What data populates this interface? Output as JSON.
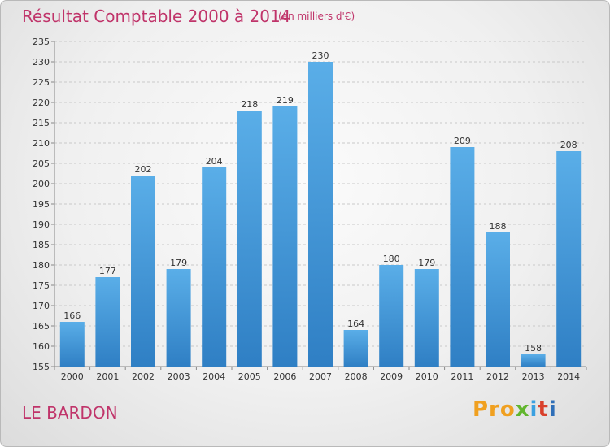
{
  "header": {
    "title": "Résultat Comptable 2000 à 2014",
    "subtitle": "(en milliers d'€)"
  },
  "footer": {
    "place": "LE BARDON",
    "logo": [
      "Pro",
      "x",
      "i",
      "t",
      "i"
    ]
  },
  "colors": {
    "text_accent": "#c0346a",
    "bar_top": "#5aaee8",
    "bar_bottom": "#2f7fc4"
  },
  "chart_data": {
    "type": "bar",
    "title": "Résultat Comptable 2000 à 2014",
    "subtitle": "(en milliers d'€)",
    "xlabel": "",
    "ylabel": "",
    "ylim": [
      155,
      235
    ],
    "yticks": [
      155,
      160,
      165,
      170,
      175,
      180,
      185,
      190,
      195,
      200,
      205,
      210,
      215,
      220,
      225,
      230,
      235
    ],
    "grid": true,
    "categories": [
      "2000",
      "2001",
      "2002",
      "2003",
      "2004",
      "2005",
      "2006",
      "2007",
      "2008",
      "2009",
      "2010",
      "2011",
      "2012",
      "2013",
      "2014"
    ],
    "values": [
      166,
      177,
      202,
      179,
      204,
      218,
      219,
      230,
      164,
      180,
      179,
      209,
      188,
      158,
      208
    ],
    "data_labels": [
      "166",
      "177",
      "202",
      "179",
      "204",
      "218",
      "219",
      "230",
      "164",
      "180",
      "179",
      "209",
      "188",
      "158",
      "208"
    ]
  }
}
